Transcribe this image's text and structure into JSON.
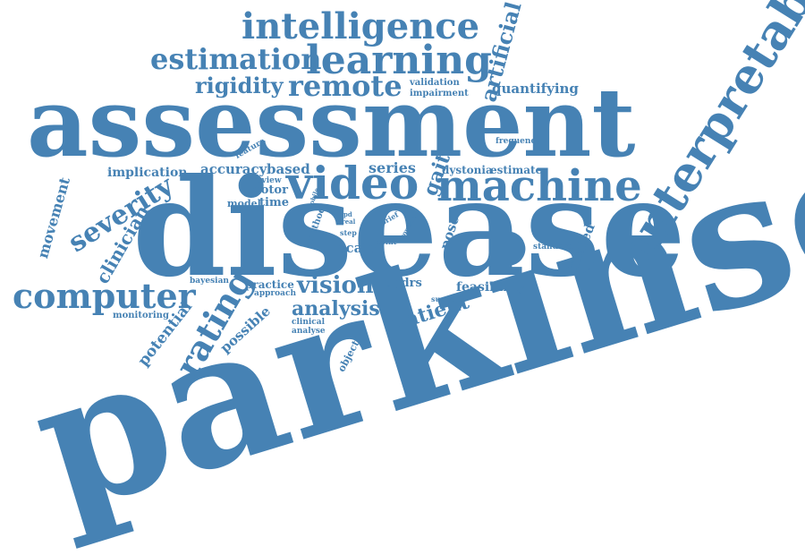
{
  "colors": {
    "word": "#4682b4",
    "background": "#ffffff"
  },
  "words": [
    {
      "id": "parkinson",
      "text": "parkinson"
    },
    {
      "id": "disease",
      "text": "disease"
    },
    {
      "id": "assessment",
      "text": "assessment"
    },
    {
      "id": "interpretable",
      "text": "interpretable"
    },
    {
      "id": "machine",
      "text": "machine"
    },
    {
      "id": "video",
      "text": "video"
    },
    {
      "id": "computer",
      "text": "computer"
    },
    {
      "id": "intelligence",
      "text": "intelligence"
    },
    {
      "id": "learning",
      "text": "learning"
    },
    {
      "id": "estimation",
      "text": "estimation"
    },
    {
      "id": "remote",
      "text": "remote"
    },
    {
      "id": "rating",
      "text": "rating"
    },
    {
      "id": "severity",
      "text": "severity"
    },
    {
      "id": "artificial",
      "text": "artificial"
    },
    {
      "id": "rigidity",
      "text": "rigidity"
    },
    {
      "id": "vision",
      "text": "vision"
    },
    {
      "id": "analysis",
      "text": "analysis"
    },
    {
      "id": "patient",
      "text": "patient"
    },
    {
      "id": "clinician",
      "text": "clinician"
    },
    {
      "id": "movement",
      "text": "movement"
    },
    {
      "id": "potential",
      "text": "potential"
    },
    {
      "id": "possible",
      "text": "possible"
    },
    {
      "id": "gait",
      "text": "gait"
    },
    {
      "id": "series",
      "text": "series"
    },
    {
      "id": "quantifying",
      "text": "quantifying"
    },
    {
      "id": "unified",
      "text": "unified"
    },
    {
      "id": "pose",
      "text": "pose"
    },
    {
      "id": "accuracy",
      "text": "accuracy"
    },
    {
      "id": "based",
      "text": "based"
    },
    {
      "id": "implication",
      "text": "implication"
    },
    {
      "id": "scale",
      "text": "scale"
    },
    {
      "id": "feasibility",
      "text": "feasibility"
    },
    {
      "id": "dystonia",
      "text": "dystonia"
    },
    {
      "id": "estimate",
      "text": "estimate"
    },
    {
      "id": "motor",
      "text": "motor"
    },
    {
      "id": "time",
      "text": "time"
    },
    {
      "id": "model",
      "text": "model"
    },
    {
      "id": "updrs",
      "text": "updrs"
    },
    {
      "id": "practice",
      "text": "practice"
    },
    {
      "id": "objective",
      "text": "objective"
    },
    {
      "id": "impairment",
      "text": "impairment"
    },
    {
      "id": "validation",
      "text": "validation"
    },
    {
      "id": "frequency",
      "text": "frequency"
    },
    {
      "id": "feature",
      "text": "feature"
    },
    {
      "id": "review",
      "text": "review"
    },
    {
      "id": "method",
      "text": "method"
    },
    {
      "id": "mobile",
      "text": "mobile"
    },
    {
      "id": "monitoring",
      "text": "monitoring"
    },
    {
      "id": "bayesian",
      "text": "bayesian"
    },
    {
      "id": "approach",
      "text": "approach"
    },
    {
      "id": "clinical",
      "text": "clinical"
    },
    {
      "id": "analyse",
      "text": "analyse"
    },
    {
      "id": "standard",
      "text": "standard"
    },
    {
      "id": "support",
      "text": "support"
    },
    {
      "id": "point",
      "text": "point"
    },
    {
      "id": "brief",
      "text": "brief"
    },
    {
      "id": "step",
      "text": "step"
    },
    {
      "id": "routine",
      "text": "routine"
    },
    {
      "id": "real",
      "text": "real"
    },
    {
      "id": "pd",
      "text": "pd"
    }
  ]
}
